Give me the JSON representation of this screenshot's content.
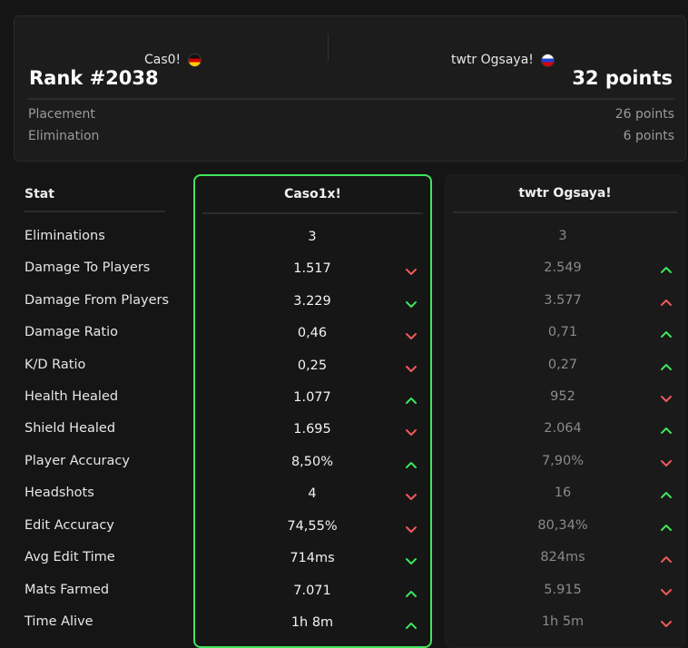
{
  "header": {
    "player1": {
      "name": "Cas0!",
      "flag": "germany-flag-icon"
    },
    "player2": {
      "name": "twtr Ogsaya!",
      "flag": "russia-flag-icon"
    },
    "rank": "Rank #2038",
    "total_points": "32 points",
    "breakdown": [
      {
        "label": "Placement",
        "value": "26 points"
      },
      {
        "label": "Elimination",
        "value": "6 points"
      }
    ]
  },
  "table": {
    "stat_header": "Stat",
    "player1_header": "Caso1x!",
    "player2_header": "twtr Ogsaya!",
    "rows": [
      {
        "label": "Eliminations",
        "p1": "3",
        "p1_arrow": "",
        "p2": "3",
        "p2_arrow": ""
      },
      {
        "label": "Damage To Players",
        "p1": "1.517",
        "p1_arrow": "down",
        "p2": "2.549",
        "p2_arrow": "up"
      },
      {
        "label": "Damage From Players",
        "p1": "3.229",
        "p1_arrow": "down-good",
        "p2": "3.577",
        "p2_arrow": "up-bad"
      },
      {
        "label": "Damage Ratio",
        "p1": "0,46",
        "p1_arrow": "down",
        "p2": "0,71",
        "p2_arrow": "up"
      },
      {
        "label": "K/D Ratio",
        "p1": "0,25",
        "p1_arrow": "down",
        "p2": "0,27",
        "p2_arrow": "up"
      },
      {
        "label": "Health Healed",
        "p1": "1.077",
        "p1_arrow": "up",
        "p2": "952",
        "p2_arrow": "down"
      },
      {
        "label": "Shield Healed",
        "p1": "1.695",
        "p1_arrow": "down",
        "p2": "2.064",
        "p2_arrow": "up"
      },
      {
        "label": "Player Accuracy",
        "p1": "8,50%",
        "p1_arrow": "up",
        "p2": "7,90%",
        "p2_arrow": "down"
      },
      {
        "label": "Headshots",
        "p1": "4",
        "p1_arrow": "down",
        "p2": "16",
        "p2_arrow": "up"
      },
      {
        "label": "Edit Accuracy",
        "p1": "74,55%",
        "p1_arrow": "down",
        "p2": "80,34%",
        "p2_arrow": "up"
      },
      {
        "label": "Avg Edit Time",
        "p1": "714ms",
        "p1_arrow": "down-good",
        "p2": "824ms",
        "p2_arrow": "up-bad"
      },
      {
        "label": "Mats Farmed",
        "p1": "7.071",
        "p1_arrow": "up",
        "p2": "5.915",
        "p2_arrow": "down"
      },
      {
        "label": "Time Alive",
        "p1": "1h 8m",
        "p1_arrow": "up",
        "p2": "1h 5m",
        "p2_arrow": "down"
      }
    ]
  },
  "colors": {
    "good": "#3ee65b",
    "bad": "#f05a5a",
    "highlight_border": "#3ee65b"
  }
}
